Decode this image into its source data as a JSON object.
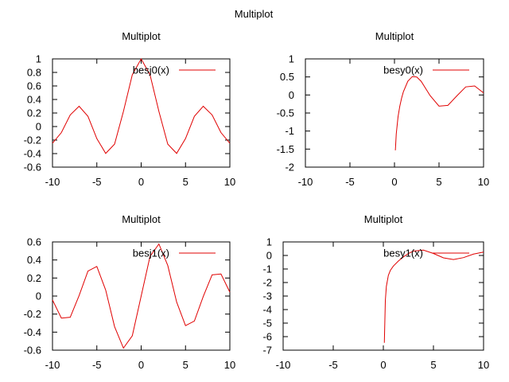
{
  "figure": {
    "title": "Multiplot"
  },
  "chart_data": [
    {
      "type": "line",
      "title": "Multiplot",
      "xlim": [
        -10,
        10
      ],
      "ylim": [
        -0.6,
        1
      ],
      "xticks": [
        "-10",
        "-5",
        "0",
        "5",
        "10"
      ],
      "yticks": [
        "-0.6",
        "-0.4",
        "-0.2",
        "0",
        "0.2",
        "0.4",
        "0.6",
        "0.8",
        "1"
      ],
      "legend_position": "top-right",
      "grid": false,
      "series": [
        {
          "name": "besj0(x)",
          "color": "#e00000",
          "x": [
            -10,
            -9,
            -8,
            -7,
            -6,
            -5,
            -4,
            -3,
            -2,
            -1,
            0,
            1,
            2,
            3,
            4,
            5,
            6,
            7,
            8,
            9,
            10
          ],
          "y": [
            -0.246,
            -0.09,
            0.172,
            0.3,
            0.151,
            -0.178,
            -0.397,
            -0.26,
            0.224,
            0.765,
            1.0,
            0.765,
            0.224,
            -0.26,
            -0.397,
            -0.178,
            0.151,
            0.3,
            0.172,
            -0.09,
            -0.246
          ]
        }
      ]
    },
    {
      "type": "line",
      "title": "Multiplot",
      "xlim": [
        -10,
        10
      ],
      "ylim": [
        -2,
        1
      ],
      "xticks": [
        "-10",
        "-5",
        "0",
        "5",
        "10"
      ],
      "yticks": [
        "-2",
        "-1.5",
        "-1",
        "-0.5",
        "0",
        "0.5",
        "1"
      ],
      "legend_position": "top-right",
      "grid": false,
      "series": [
        {
          "name": "besy0(x)",
          "color": "#e00000",
          "x": [
            0.1,
            0.2,
            0.4,
            0.6,
            0.8,
            1,
            1.5,
            2,
            2.5,
            3,
            4,
            5,
            6,
            7,
            8,
            9,
            10
          ],
          "y": [
            -1.534,
            -1.081,
            -0.606,
            -0.309,
            -0.087,
            0.088,
            0.382,
            0.51,
            0.498,
            0.377,
            -0.017,
            -0.309,
            -0.288,
            -0.026,
            0.224,
            0.25,
            0.056
          ]
        }
      ]
    },
    {
      "type": "line",
      "title": "Multiplot",
      "xlim": [
        -10,
        10
      ],
      "ylim": [
        -0.6,
        0.6
      ],
      "xticks": [
        "-10",
        "-5",
        "0",
        "5",
        "10"
      ],
      "yticks": [
        "-0.6",
        "-0.4",
        "-0.2",
        "0",
        "0.2",
        "0.4",
        "0.6"
      ],
      "legend_position": "top-right",
      "grid": false,
      "series": [
        {
          "name": "besj1(x)",
          "color": "#e00000",
          "x": [
            -10,
            -9,
            -8,
            -7,
            -6,
            -5,
            -4,
            -3,
            -2,
            -1,
            0,
            1,
            2,
            3,
            4,
            5,
            6,
            7,
            8,
            9,
            10
          ],
          "y": [
            -0.043,
            -0.245,
            -0.235,
            0.005,
            0.277,
            0.328,
            0.066,
            -0.339,
            -0.577,
            -0.44,
            0.0,
            0.44,
            0.577,
            0.339,
            -0.066,
            -0.328,
            -0.277,
            -0.005,
            0.235,
            0.245,
            0.043
          ]
        }
      ]
    },
    {
      "type": "line",
      "title": "Multiplot",
      "xlim": [
        -10,
        10
      ],
      "ylim": [
        -7,
        1
      ],
      "xticks": [
        "-10",
        "-5",
        "0",
        "5",
        "10"
      ],
      "yticks": [
        "-7",
        "-6",
        "-5",
        "-4",
        "-3",
        "-2",
        "-1",
        "0",
        "1"
      ],
      "legend_position": "top-right",
      "grid": false,
      "series": [
        {
          "name": "besy1(x)",
          "color": "#e00000",
          "x": [
            0.1,
            0.2,
            0.3,
            0.5,
            0.7,
            1,
            1.5,
            2,
            2.5,
            3,
            4,
            5,
            6,
            7,
            8,
            9,
            10
          ],
          "y": [
            -6.459,
            -3.324,
            -2.293,
            -1.471,
            -1.103,
            -0.781,
            -0.412,
            -0.107,
            0.146,
            0.325,
            0.398,
            0.148,
            -0.175,
            -0.303,
            -0.158,
            0.104,
            0.249
          ]
        }
      ]
    }
  ]
}
